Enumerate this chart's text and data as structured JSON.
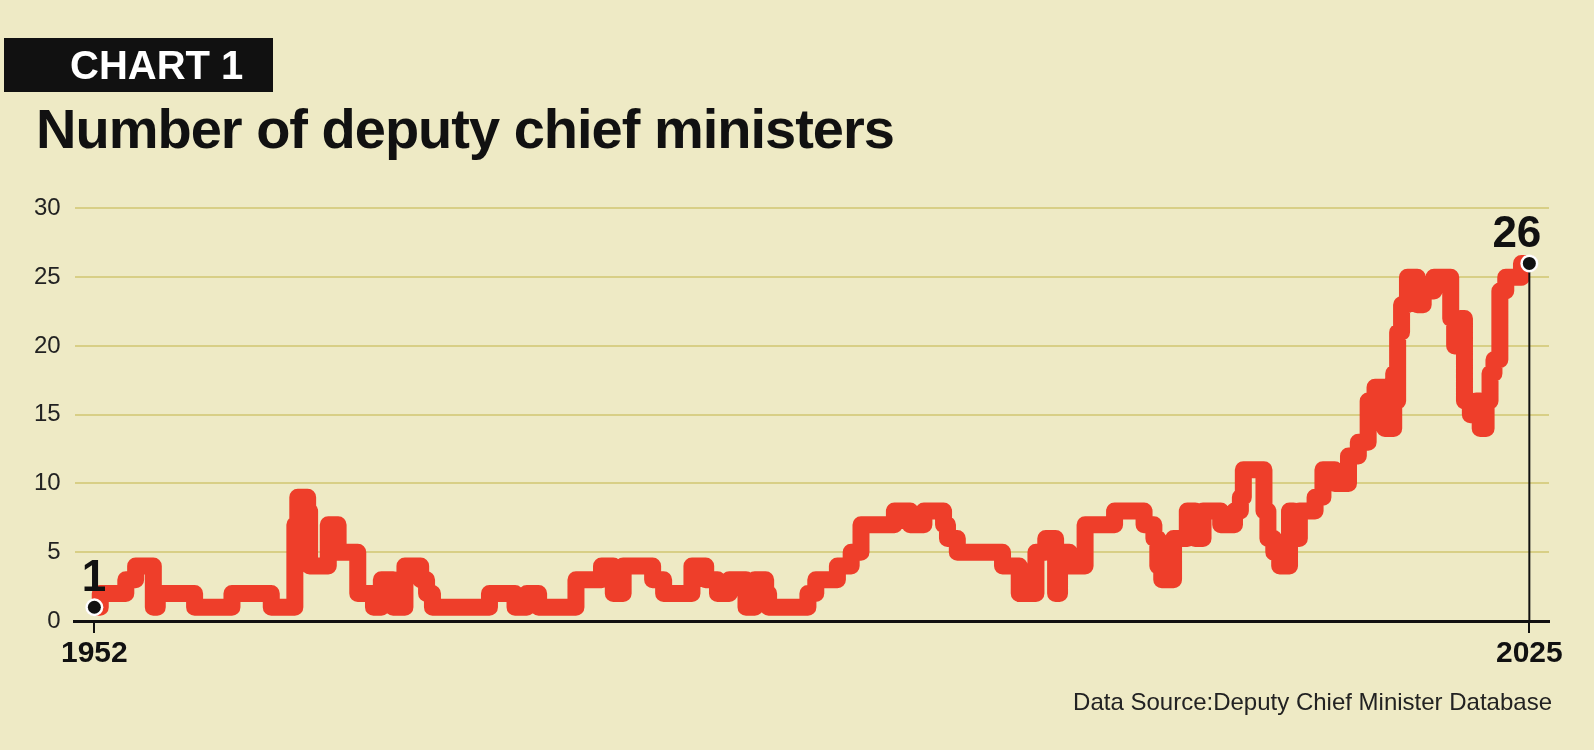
{
  "chart_data": {
    "type": "step",
    "subtitle": "CHART 1",
    "title": "Number of deputy chief ministers",
    "x": [
      1952.0,
      1952.3,
      1953.6,
      1954.1,
      1955.0,
      1955.2,
      1957.1,
      1959.0,
      1961.0,
      1962.2,
      1962.35,
      1962.85,
      1962.95,
      1963.9,
      1964.4,
      1965.4,
      1966.2,
      1966.6,
      1967.2,
      1967.8,
      1968.6,
      1968.9,
      1969.2,
      1972.1,
      1973.4,
      1974.0,
      1974.6,
      1976.5,
      1977.8,
      1978.4,
      1978.9,
      1980.4,
      1980.96,
      1982.4,
      1983.1,
      1983.7,
      1984.3,
      1985.15,
      1985.6,
      1986.15,
      1986.3,
      1988.3,
      1988.7,
      1989.8,
      1990.5,
      1991.0,
      1992.7,
      1993.5,
      1994.2,
      1995.2,
      1995.4,
      1995.9,
      1998.2,
      1999.05,
      1999.9,
      2000.4,
      2000.9,
      2001.1,
      2001.6,
      2002.4,
      2003.9,
      2005.4,
      2005.9,
      2006.1,
      2006.3,
      2006.9,
      2007.6,
      2008.0,
      2008.4,
      2009.3,
      2010.0,
      2010.3,
      2010.45,
      2011.5,
      2011.7,
      2012.0,
      2012.3,
      2012.8,
      2013.0,
      2013.3,
      2014.1,
      2014.5,
      2015.1,
      2015.8,
      2016.3,
      2016.8,
      2017.15,
      2017.65,
      2018.1,
      2018.2,
      2018.3,
      2018.5,
      2018.8,
      2019.3,
      2019.6,
      2020.15,
      2021.0,
      2021.2,
      2021.5,
      2021.7,
      2022.0,
      2022.3,
      2022.5,
      2022.8,
      2023.0,
      2023.2,
      2023.5,
      2023.8,
      2024.6,
      2025.0
    ],
    "series": [
      {
        "color": "#ee3e2a",
        "values": [
          1,
          2,
          3,
          4,
          1,
          2,
          1,
          2,
          1,
          7,
          9,
          8,
          4,
          7,
          5,
          2,
          1,
          3,
          1,
          4,
          3,
          2,
          1,
          2,
          1,
          2,
          1,
          3,
          4,
          2,
          4,
          3,
          2,
          4,
          3,
          2,
          3,
          1,
          3,
          2,
          1,
          2,
          3,
          4,
          5,
          7,
          8,
          7,
          8,
          7,
          6,
          5,
          4,
          2,
          5,
          6,
          2,
          5,
          4,
          7,
          8,
          7,
          6,
          4,
          3,
          6,
          8,
          6,
          8,
          7,
          8,
          9,
          11,
          8,
          6,
          5,
          4,
          8,
          6,
          8,
          9,
          11,
          10,
          12,
          13,
          16,
          17,
          14,
          18,
          16,
          21,
          23,
          25,
          23,
          24,
          25,
          22,
          20,
          22,
          16,
          15,
          16,
          14,
          16,
          18,
          19,
          24,
          25,
          26,
          26
        ]
      }
    ],
    "xlim": [
      1951,
      2026
    ],
    "xticks": [
      1952,
      2025
    ],
    "ref_lines": [
      {
        "axis": "x",
        "value": 2025,
        "color": "#111111"
      }
    ],
    "ylim": [
      0,
      30
    ],
    "yticks": [
      0,
      5,
      10,
      15,
      20,
      25,
      30
    ],
    "grid": "y",
    "annotations": [
      {
        "text": "1",
        "x": 1952,
        "y": 1
      },
      {
        "text": "26",
        "x": 2025,
        "y": 26
      },
      "Data Source:Deputy Chief Minister Database"
    ]
  }
}
